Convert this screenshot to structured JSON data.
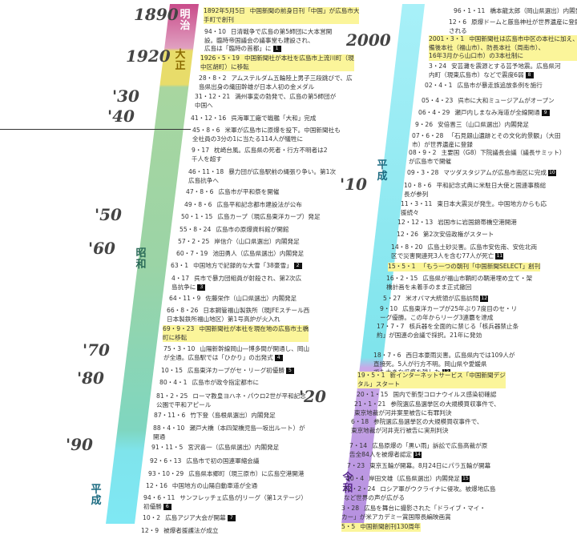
{
  "years": [
    "1890",
    "1920",
    "'30",
    "'40",
    "'50",
    "'60",
    "'70",
    "'80",
    "'90",
    "2000",
    "'10",
    "'20"
  ],
  "eras": [
    "明治",
    "大正",
    "昭和",
    "平成",
    "平成",
    "令和"
  ],
  "left_events": [
    {
      "d": "1892年5月5日",
      "t": "中国新聞の前身日刊「中国」が広島市大",
      "t2": "手町で創刊",
      "hl": true
    },
    {
      "d": "94・10",
      "t": "日清戦争で広島の第5師団に大本営開",
      "t2": "設。臨時帝国議会の議事堂も建設され、",
      "t3": "広島は「臨時の首都」に",
      "badge": "1"
    },
    {
      "d": "1926・5・19",
      "t": "中国新聞社が本社を広島市上流川町（現",
      "t2": "中区胡町）に移転",
      "hl": true
    },
    {
      "d": "28・8・2",
      "t": "アムステルダム五輪陸上男子三段跳びで、広",
      "t2": "島県出身の織田幹雄が日本人初の金メダル"
    },
    {
      "d": "31・12・21",
      "t": "満州事変の勃発で、広島の第5師団が",
      "t2": "中国へ"
    },
    {
      "d": "41・12・16",
      "t": "呉海軍工廠で戦艦「大和」完成"
    },
    {
      "d": "45・8・6",
      "t": "米軍が広島市に原爆を投下。中国新聞社も",
      "t2": "全社員の3分の1に当たる114人が犠牲に"
    },
    {
      "d": "9・17",
      "t": "枕崎台風。広島県の死者・行方不明者は2",
      "t2": "千人を超す"
    },
    {
      "d": "46・11・18",
      "t": "暴力団が広島駅前の縄張り争い。第1次",
      "t2": "広島抗争へ"
    },
    {
      "d": "47・8・6",
      "t": "広島市が平和祭を開催"
    },
    {
      "d": "49・8・6",
      "t": "広島平和記念都市建設法が公布"
    },
    {
      "d": "50・1・15",
      "t": "広島カープ（現広島東洋カープ）発足"
    },
    {
      "d": "55・8・24",
      "t": "広島市の原爆資料館が開館"
    },
    {
      "d": "57・2・25",
      "t": "岸信介（山口県選出）内閣発足"
    },
    {
      "d": "60・7・19",
      "t": "池田勇人（広島県選出）内閣発足"
    },
    {
      "d": "63・1",
      "t": "中国地方で記録的な大雪「38豪雪」",
      "badge": "2"
    },
    {
      "d": "4・17",
      "t": "呉市で暴力団組員が射殺され、第2次広",
      "t2": "島抗争に",
      "badge": "3"
    },
    {
      "d": "64・11・9",
      "t": "佐藤栄作（山口県選出）内閣発足"
    },
    {
      "d": "66・8・26",
      "t": "日本鋼管福山製鉄所（現JFEスチール西",
      "t2": "日本製鉄所福山地区）第1号高炉が火入れ"
    },
    {
      "d": "69・9・23",
      "t": "中国新聞社が本社を現在地の広島市土橋",
      "t2": "町に移転",
      "hl": true
    },
    {
      "d": "75・3・10",
      "t": "山陽新幹線岡山―博多間が開通し、岡山",
      "t2": "が全通。広島駅では「ひかり」の出発式",
      "badge": "4"
    },
    {
      "d": "10・15",
      "t": "広島東洋カープがセ・リーグ初優勝",
      "badge": "5"
    },
    {
      "d": "80・4・1",
      "t": "広島市が政令指定都市に"
    },
    {
      "d": "81・2・25",
      "t": "ローマ教皇ヨハネ・パウロ2世が平和記念",
      "t2": "公園で平和アピール"
    },
    {
      "d": "87・11・6",
      "t": "竹下登（島根県選出）内閣発足"
    },
    {
      "d": "88・4・10",
      "t": "瀬戸大橋（本四架橋児島―坂出ルート）が",
      "t2": "開通"
    },
    {
      "d": "91・11・5",
      "t": "宮沢喜一（広島県選出）内閣発足"
    },
    {
      "d": "92・6・13",
      "t": "広島市で初の国連軍縮会議"
    },
    {
      "d": "93・10・29",
      "t": "広島県本郷町（現三原市）に広島空港開港"
    },
    {
      "d": "12・16",
      "t": "中国地方の山陽自動車道が全通"
    },
    {
      "d": "94・6・11",
      "t": "サンフレッチェ広島がJリーグ（第1ステージ）",
      "t2": "初優勝",
      "badge": "6"
    },
    {
      "d": "10・2",
      "t": "広島アジア大会が開幕",
      "badge": "7"
    },
    {
      "d": "12・9",
      "t": "被爆者援護法が成立"
    }
  ],
  "right_events": [
    {
      "d": "96・1・11",
      "t": "橋本龍太郎（岡山県選出）内閣発足"
    },
    {
      "d": "12・6",
      "t": "原爆ドームと厳島神社が世界遺産に登録",
      "t2": "される"
    },
    {
      "d": "2001・3・1",
      "t": "中国新聞社は広島市中区の本社に加え、",
      "t2": "備後本社（福山市）、防長本社（周南市）、",
      "t3": "16年3月から山口市）の3本社制に",
      "hl": true
    },
    {
      "d": "3・24",
      "t": "安芸灘を震源とする芸予地震。広島県河",
      "t2": "内町（現東広島市）などで震度6弱",
      "badge": "8"
    },
    {
      "d": "02・4・1",
      "t": "広島市が暴走族追放条例を施行"
    },
    {
      "d": "05・4・23",
      "t": "呉市に大和ミュージアムがオープン"
    },
    {
      "d": "06・4・29",
      "t": "瀬戸内しまなみ海道が全線開通",
      "badge": "9"
    },
    {
      "d": "9・26",
      "t": "安倍晋三（山口県選出）内閣発足"
    },
    {
      "d": "07・6・28",
      "t": "「石見銀山遺跡とその文化的景観」（大田",
      "t2": "市）が世界遺産に登録"
    },
    {
      "d": "08・9・2",
      "t": "主要国（G8）下院議長会議（議長サミット）",
      "t2": "が広島市で開催"
    },
    {
      "d": "09・3・28",
      "t": "マツダスタジアムが広島市南区に完成",
      "badge": "10"
    },
    {
      "d": "10・8・6",
      "t": "平和記念式典に米駐日大使と国連事務総",
      "t2": "長が参列"
    },
    {
      "d": "11・3・11",
      "t": "東日本大震災が発生。中国地方からも応",
      "t2": "援続々"
    },
    {
      "d": "12・12・13",
      "t": "岩国市に岩国錦帯橋空港開港"
    },
    {
      "d": "12・26",
      "t": "第2次安倍政権がスタート"
    },
    {
      "d": "14・8・20",
      "t": "広島土砂災害。広島市安佐南、安佐北両",
      "t2": "区で災害関連死3人を含む77人が死亡",
      "badge": "11"
    },
    {
      "d": "15・5・1",
      "t": "「もう一つの朝刊「中国新聞SELECT」創刊",
      "hl": true
    },
    {
      "d": "16・2・15",
      "t": "広島県が福山市鞆町の鞆港埋め立て・架",
      "t2": "橋計画を未着手のまま正式撤回"
    },
    {
      "d": "5・27",
      "t": "米オバマ大統領が広島訪問",
      "badge": "12"
    },
    {
      "d": "9・10",
      "t": "広島東洋カープが25年ぶり7度目のセ・リ",
      "t2": "ーグ優勝。この年からリーグ3連覇を達成"
    },
    {
      "d": "17・7・7",
      "t": "核兵器を全面的に禁じる「核兵器禁止条",
      "t2": "約」が国連の会議で採択。21年に発効"
    },
    {
      "d": "18・7・6",
      "t": "西日本豪雨災害。広島県内では109人が",
      "t2": "直接死。5人が行方不明。岡山県や愛媛県",
      "t3": "でも大きな爪痕を残した",
      "badge": "13"
    },
    {
      "d": "19・5・1",
      "t": "新インターネットサービス「中国新聞デジ",
      "t2": "タル」スタート",
      "hl": true
    },
    {
      "d": "20・1・15",
      "t": "国内で新型コロナウイルス感染初確認"
    },
    {
      "d": "21・1・21",
      "t": "参院選広島選挙区の大規模買収事件で、",
      "t2": "東京地裁が河井案里被告に有罪判決"
    },
    {
      "d": "6・18",
      "t": "参院選広島選挙区の大規模買収事件で、",
      "t2": "東京地裁が河井克行被告に実刑判決"
    },
    {
      "d": "7・14",
      "t": "広島原爆の「黒い雨」訴訟で広島高裁が原",
      "t2": "告全84人を被爆者認定",
      "badge": "14"
    },
    {
      "d": "7・23",
      "t": "東京五輪が開幕。8月24日にパラ五輪が開幕"
    },
    {
      "d": "10・4",
      "t": "岸田文雄（広島県選出）内閣発足",
      "badge": "15"
    },
    {
      "d": "22・2・24",
      "t": "ロシア軍がウクライナに侵攻。被爆地広島",
      "t2": "など世界の声が広がる"
    },
    {
      "d": "3・28",
      "t": "広島を舞台に撮影された「ドライブ・マイ・",
      "t2": "カー」が米アカデミー賞国際長編映画賞"
    },
    {
      "d": "5・5",
      "t": "中国新聞創刊130周年",
      "hl": true
    }
  ]
}
